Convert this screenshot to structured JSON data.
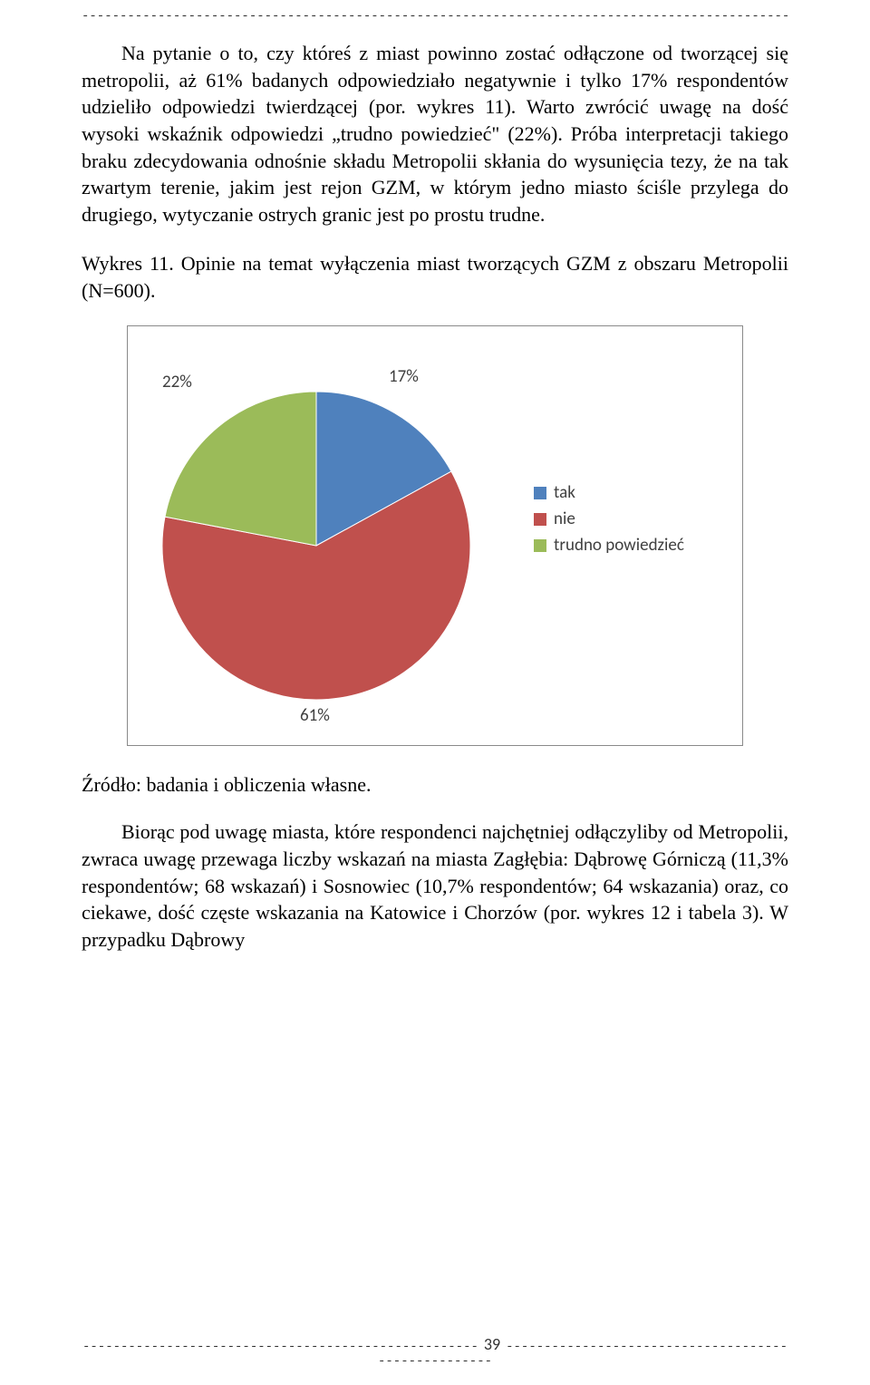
{
  "topDash": "---------------------------------------------------------------------------------------------------------------",
  "para1": "Na pytanie o to, czy któreś z miast powinno zostać odłączone od tworzącej się metropolii, aż 61% badanych odpowiedziało negatywnie i tylko 17% respondentów udzieliło odpowiedzi twierdzącej (por. wykres 11). Warto zwrócić uwagę na dość wysoki wskaźnik odpowiedzi „trudno powiedzieć\" (22%). Próba interpretacji takiego braku zdecydowania odnośnie składu Metropolii skłania do wysunięcia tezy, że na tak zwartym terenie, jakim jest rejon GZM, w którym jedno miasto ściśle przylega do drugiego, wytyczanie ostrych granic jest po prostu trudne.",
  "capTitle": "Wykres 11. Opinie na temat wyłączenia miast tworzących GZM z obszaru Metropolii (N=600).",
  "chart": {
    "type": "pie",
    "slices": [
      {
        "label": "tak",
        "value": 17,
        "pct": "17%",
        "color": "#4f81bd"
      },
      {
        "label": "nie",
        "value": 61,
        "pct": "61%",
        "color": "#c0504d"
      },
      {
        "label": "trudno powiedzieć",
        "value": 22,
        "pct": "22%",
        "color": "#9bbb59"
      }
    ],
    "label_fontsize": 19,
    "label_color": "#404040",
    "background_color": "#ffffff",
    "border_color": "#8a8a8a",
    "pie_radius": 170,
    "start_angle_deg": -90
  },
  "source": "Źródło: badania i obliczenia własne.",
  "para2": "Biorąc pod uwagę miasta, które respondenci najchętniej odłączyliby od Metropolii, zwraca uwagę przewaga liczby wskazań na miasta Zagłębia: Dąbrowę Górniczą (11,3% respondentów; 68 wskazań) i Sosnowiec (10,7% respondentów; 64 wskazania) oraz, co ciekawe, dość częste wskazania na Katowice i Chorzów (por. wykres 12 i tabela 3). W przypadku Dąbrowy",
  "footer": {
    "leftDash": "----------------------------------------------------",
    "page": "39",
    "rightDash": "----------------------------------------------------"
  }
}
